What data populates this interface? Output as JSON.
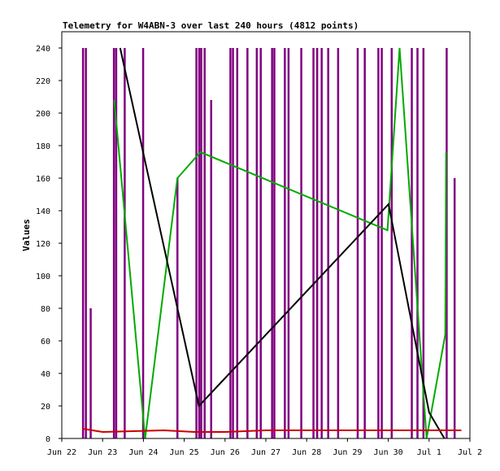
{
  "chart_data": {
    "type": "line",
    "title": "Telemetry for W4ABN-3 over last 240 hours (4812 points)",
    "xlabel": "",
    "ylabel": "Values",
    "ylim": [
      0,
      250
    ],
    "yticks": [
      0,
      20,
      40,
      60,
      80,
      100,
      120,
      140,
      160,
      180,
      200,
      220,
      240
    ],
    "xlim": [
      "2024-06-22T00:00",
      "2024-07-02T00:00"
    ],
    "xticks": [
      {
        "label": "Jun 22",
        "t": "2024-06-22T00:00"
      },
      {
        "label": "Jun 23",
        "t": "2024-06-23T00:00"
      },
      {
        "label": "Jun 24",
        "t": "2024-06-24T00:00"
      },
      {
        "label": "Jun 25",
        "t": "2024-06-25T00:00"
      },
      {
        "label": "Jun 26",
        "t": "2024-06-26T00:00"
      },
      {
        "label": "Jun 27",
        "t": "2024-06-27T00:00"
      },
      {
        "label": "Jun 28",
        "t": "2024-06-28T00:00"
      },
      {
        "label": "Jun 29",
        "t": "2024-06-29T00:00"
      },
      {
        "label": "Jun 30",
        "t": "2024-06-30T00:00"
      },
      {
        "label": "Jul 1",
        "t": "2024-07-01T00:00"
      },
      {
        "label": "Jul 2",
        "t": "2024-07-02T00:00"
      }
    ],
    "grid": false,
    "legend": "none",
    "series": [
      {
        "color": "#800080",
        "spikes": [
          {
            "t": "2024-06-22T12:30",
            "v": 240
          },
          {
            "t": "2024-06-22T14:10",
            "v": 240
          },
          {
            "t": "2024-06-22T17:00",
            "v": 80
          },
          {
            "t": "2024-06-23T06:40",
            "v": 240
          },
          {
            "t": "2024-06-23T08:00",
            "v": 240
          },
          {
            "t": "2024-06-23T13:00",
            "v": 240
          },
          {
            "t": "2024-06-23T23:50",
            "v": 240
          },
          {
            "t": "2024-06-24T20:00",
            "v": 160
          },
          {
            "t": "2024-06-25T07:10",
            "v": 240
          },
          {
            "t": "2024-06-25T08:50",
            "v": 240
          },
          {
            "t": "2024-06-25T10:00",
            "v": 240
          },
          {
            "t": "2024-06-25T12:00",
            "v": 240
          },
          {
            "t": "2024-06-25T15:50",
            "v": 208
          },
          {
            "t": "2024-06-26T03:10",
            "v": 240
          },
          {
            "t": "2024-06-26T04:40",
            "v": 240
          },
          {
            "t": "2024-06-26T07:10",
            "v": 240
          },
          {
            "t": "2024-06-26T13:10",
            "v": 240
          },
          {
            "t": "2024-06-26T18:40",
            "v": 240
          },
          {
            "t": "2024-06-26T21:00",
            "v": 240
          },
          {
            "t": "2024-06-27T03:40",
            "v": 240
          },
          {
            "t": "2024-06-27T05:00",
            "v": 240
          },
          {
            "t": "2024-06-27T11:10",
            "v": 240
          },
          {
            "t": "2024-06-27T13:20",
            "v": 240
          },
          {
            "t": "2024-06-27T20:50",
            "v": 240
          },
          {
            "t": "2024-06-28T04:00",
            "v": 240
          },
          {
            "t": "2024-06-28T06:10",
            "v": 240
          },
          {
            "t": "2024-06-28T08:50",
            "v": 240
          },
          {
            "t": "2024-06-28T12:40",
            "v": 240
          },
          {
            "t": "2024-06-28T18:30",
            "v": 240
          },
          {
            "t": "2024-06-29T06:00",
            "v": 240
          },
          {
            "t": "2024-06-29T10:10",
            "v": 240
          },
          {
            "t": "2024-06-29T18:10",
            "v": 240
          },
          {
            "t": "2024-06-29T20:10",
            "v": 240
          },
          {
            "t": "2024-06-30T02:00",
            "v": 240
          },
          {
            "t": "2024-06-30T13:50",
            "v": 240
          },
          {
            "t": "2024-06-30T17:10",
            "v": 240
          },
          {
            "t": "2024-06-30T20:40",
            "v": 240
          },
          {
            "t": "2024-07-01T10:20",
            "v": 240
          },
          {
            "t": "2024-07-01T15:00",
            "v": 160
          }
        ]
      },
      {
        "color": "#00aa00",
        "values": [
          {
            "t": "2024-06-23T06:50",
            "v": 208
          },
          {
            "t": "2024-06-24T01:00",
            "v": 0
          },
          {
            "t": "2024-06-24T20:00",
            "v": 160
          },
          {
            "t": "2024-06-25T09:30",
            "v": 176
          },
          {
            "t": "2024-06-29T23:30",
            "v": 128
          },
          {
            "t": "2024-06-30T06:40",
            "v": 240
          },
          {
            "t": "2024-06-30T22:30",
            "v": 0
          },
          {
            "t": "2024-07-01T09:30",
            "v": 64
          },
          {
            "t": "2024-07-01T10:00",
            "v": 176
          }
        ]
      },
      {
        "color": "#000000",
        "values": [
          {
            "t": "2024-06-23T10:20",
            "v": 240
          },
          {
            "t": "2024-06-25T08:40",
            "v": 20
          },
          {
            "t": "2024-06-30T00:10",
            "v": 144
          },
          {
            "t": "2024-07-01T00:00",
            "v": 16
          },
          {
            "t": "2024-07-01T09:00",
            "v": 0
          }
        ]
      },
      {
        "color": "#cc0000",
        "values": [
          {
            "t": "2024-06-22T12:00",
            "v": 6
          },
          {
            "t": "2024-06-23T00:00",
            "v": 4
          },
          {
            "t": "2024-06-24T12:00",
            "v": 5
          },
          {
            "t": "2024-06-25T06:00",
            "v": 4
          },
          {
            "t": "2024-06-26T00:00",
            "v": 4
          },
          {
            "t": "2024-06-27T00:00",
            "v": 5
          },
          {
            "t": "2024-06-28T00:00",
            "v": 5
          },
          {
            "t": "2024-06-29T00:00",
            "v": 5
          },
          {
            "t": "2024-06-30T00:00",
            "v": 5
          },
          {
            "t": "2024-07-01T00:00",
            "v": 5
          },
          {
            "t": "2024-07-01T19:00",
            "v": 5
          }
        ]
      }
    ]
  }
}
